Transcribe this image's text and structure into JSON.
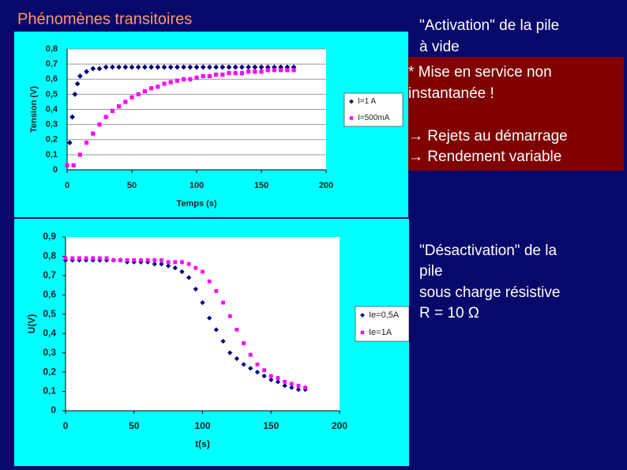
{
  "slide": {
    "title": "Phénomènes transitoires",
    "activation": [
      "\"Activation\" de la pile",
      "à vide"
    ],
    "notes": [
      "* Mise en service non",
      "instantanée !",
      "→  Rejets au démarrage",
      "→ Rendement variable"
    ],
    "desactivation": [
      "\"Désactivation\" de la",
      "pile",
      "sous charge résistive",
      "R = 10 Ω"
    ]
  },
  "chart_data": [
    {
      "type": "scatter",
      "x_label": "Temps (s)",
      "y_label": "Tension (V)",
      "xlim": [
        0,
        200
      ],
      "xticks": [
        0,
        50,
        100,
        150,
        200
      ],
      "ylim": [
        0,
        0.8
      ],
      "yticks": [
        0,
        {
          "value": 0.1,
          "label": "0,1"
        },
        {
          "value": 0.2,
          "label": "0,2"
        },
        {
          "value": 0.3,
          "label": "0,3"
        },
        {
          "value": 0.4,
          "label": "0,4"
        },
        {
          "value": 0.5,
          "label": "0,5"
        },
        {
          "value": 0.6,
          "label": "0,6"
        },
        {
          "value": 0.7,
          "label": "0,7"
        },
        {
          "value": 0.8,
          "label": "0,8"
        }
      ],
      "grid": true,
      "series": [
        {
          "name": "I=1 A",
          "color": "#000080",
          "marker": "diamond",
          "x": [
            2,
            4,
            6,
            8,
            10,
            15,
            20,
            25,
            30,
            35,
            40,
            45,
            50,
            55,
            60,
            65,
            70,
            75,
            80,
            85,
            90,
            95,
            100,
            105,
            110,
            115,
            120,
            125,
            130,
            135,
            140,
            145,
            150,
            155,
            160,
            165,
            170,
            175
          ],
          "values": [
            0.18,
            0.35,
            0.5,
            0.57,
            0.62,
            0.65,
            0.67,
            0.67,
            0.68,
            0.68,
            0.68,
            0.68,
            0.68,
            0.68,
            0.68,
            0.68,
            0.68,
            0.68,
            0.68,
            0.68,
            0.68,
            0.68,
            0.68,
            0.68,
            0.68,
            0.68,
            0.68,
            0.68,
            0.68,
            0.68,
            0.68,
            0.68,
            0.68,
            0.68,
            0.68,
            0.68,
            0.68,
            0.68
          ]
        },
        {
          "name": "I=500mA",
          "color": "#ff00ff",
          "marker": "square",
          "x": [
            0,
            5,
            10,
            15,
            20,
            25,
            30,
            35,
            40,
            45,
            50,
            55,
            60,
            65,
            70,
            75,
            80,
            85,
            90,
            95,
            100,
            105,
            110,
            115,
            120,
            125,
            130,
            135,
            140,
            145,
            150,
            155,
            160,
            165,
            170,
            175
          ],
          "values": [
            0.03,
            0.03,
            0.1,
            0.18,
            0.24,
            0.3,
            0.35,
            0.39,
            0.42,
            0.45,
            0.48,
            0.5,
            0.52,
            0.54,
            0.55,
            0.57,
            0.58,
            0.59,
            0.6,
            0.6,
            0.61,
            0.62,
            0.62,
            0.63,
            0.63,
            0.64,
            0.64,
            0.64,
            0.65,
            0.65,
            0.65,
            0.66,
            0.66,
            0.66,
            0.66,
            0.66
          ]
        }
      ]
    },
    {
      "type": "scatter",
      "x_label": "t(s)",
      "y_label": "U(V)",
      "xlim": [
        0,
        200
      ],
      "xticks": [
        0,
        50,
        100,
        150,
        200
      ],
      "ylim": [
        0,
        0.9
      ],
      "yticks": [
        0,
        {
          "value": 0.1,
          "label": "0,1"
        },
        {
          "value": 0.2,
          "label": "0,2"
        },
        {
          "value": 0.3,
          "label": "0,3"
        },
        {
          "value": 0.4,
          "label": "0,4"
        },
        {
          "value": 0.5,
          "label": "0,5"
        },
        {
          "value": 0.6,
          "label": "0,6"
        },
        {
          "value": 0.7,
          "label": "0,7"
        },
        {
          "value": 0.8,
          "label": "0,8"
        },
        {
          "value": 0.9,
          "label": "0,9"
        }
      ],
      "grid": false,
      "series": [
        {
          "name": "Ie=0,5A",
          "color": "#000080",
          "marker": "diamond",
          "x": [
            0,
            5,
            10,
            15,
            20,
            25,
            30,
            35,
            40,
            45,
            50,
            55,
            60,
            65,
            70,
            75,
            80,
            85,
            90,
            95,
            100,
            105,
            110,
            115,
            120,
            125,
            130,
            135,
            140,
            145,
            150,
            155,
            160,
            165,
            170,
            175
          ],
          "values": [
            0.78,
            0.78,
            0.78,
            0.78,
            0.78,
            0.78,
            0.78,
            0.78,
            0.78,
            0.77,
            0.77,
            0.77,
            0.77,
            0.76,
            0.76,
            0.75,
            0.74,
            0.72,
            0.69,
            0.63,
            0.56,
            0.48,
            0.42,
            0.36,
            0.3,
            0.27,
            0.24,
            0.22,
            0.2,
            0.18,
            0.16,
            0.15,
            0.13,
            0.12,
            0.11,
            0.11
          ]
        },
        {
          "name": "Ie=1A",
          "color": "#ff00ff",
          "marker": "square",
          "x": [
            0,
            5,
            10,
            15,
            20,
            25,
            30,
            35,
            40,
            45,
            50,
            55,
            60,
            65,
            70,
            75,
            80,
            85,
            90,
            95,
            100,
            105,
            110,
            115,
            120,
            125,
            130,
            135,
            140,
            145,
            150,
            155,
            160,
            165,
            170,
            175
          ],
          "values": [
            0.79,
            0.79,
            0.79,
            0.79,
            0.79,
            0.79,
            0.79,
            0.78,
            0.78,
            0.78,
            0.78,
            0.78,
            0.78,
            0.78,
            0.78,
            0.77,
            0.77,
            0.77,
            0.76,
            0.74,
            0.72,
            0.67,
            0.62,
            0.56,
            0.49,
            0.42,
            0.35,
            0.29,
            0.24,
            0.21,
            0.18,
            0.17,
            0.15,
            0.14,
            0.13,
            0.12
          ]
        }
      ]
    }
  ]
}
